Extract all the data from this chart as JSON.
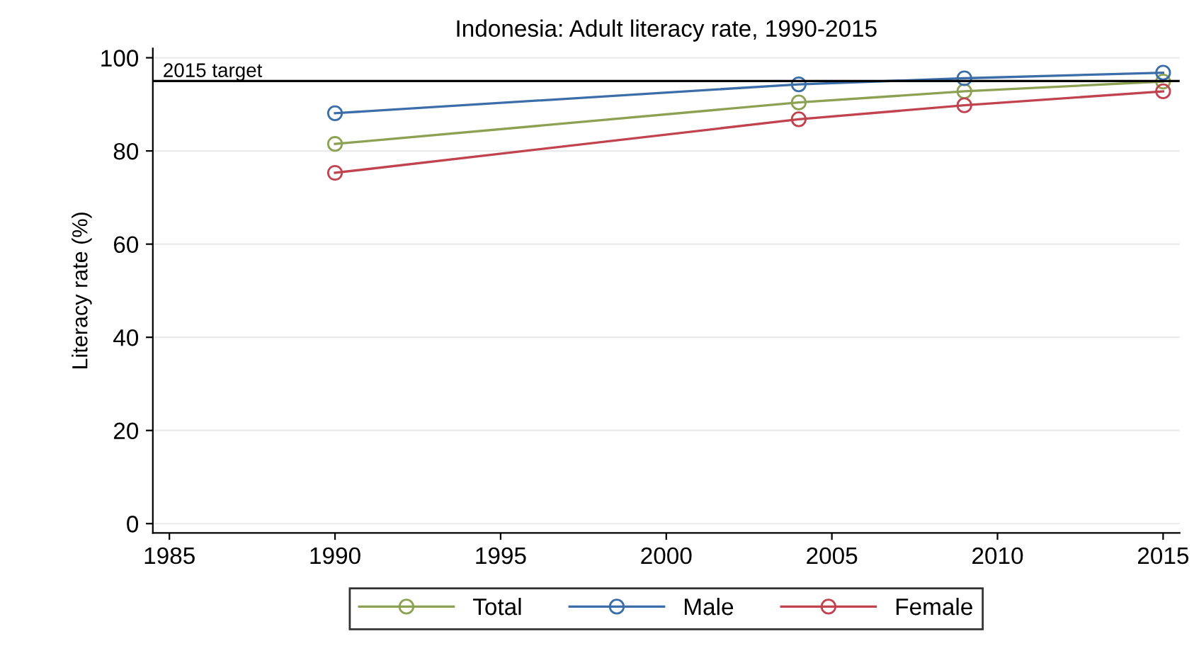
{
  "chart_data": {
    "type": "line",
    "title": "Indonesia: Adult literacy rate, 1990-2015",
    "ylabel": "Literacy rate (%)",
    "x": [
      1990,
      2004,
      2009,
      2015
    ],
    "series": [
      {
        "name": "Total",
        "color": "#8ca252",
        "values": [
          81.5,
          90.4,
          92.8,
          94.9
        ]
      },
      {
        "name": "Male",
        "color": "#3b6ea8",
        "values": [
          88.1,
          94.3,
          95.6,
          96.8
        ]
      },
      {
        "name": "Female",
        "color": "#c0434f",
        "values": [
          75.3,
          86.8,
          89.8,
          92.8
        ]
      }
    ],
    "xlim": [
      1984.5,
      2015.5
    ],
    "xticks": [
      1985,
      1990,
      1995,
      2000,
      2005,
      2010,
      2015
    ],
    "ylim": [
      -2,
      102
    ],
    "yticks": [
      0,
      20,
      40,
      60,
      80,
      100
    ],
    "ref_lines": [
      {
        "axis": "y",
        "value": 95,
        "label": "2015 target",
        "color": "#000000"
      }
    ],
    "grid": "y",
    "legend": "bottom",
    "marker": "circle",
    "line_style": "solid"
  }
}
